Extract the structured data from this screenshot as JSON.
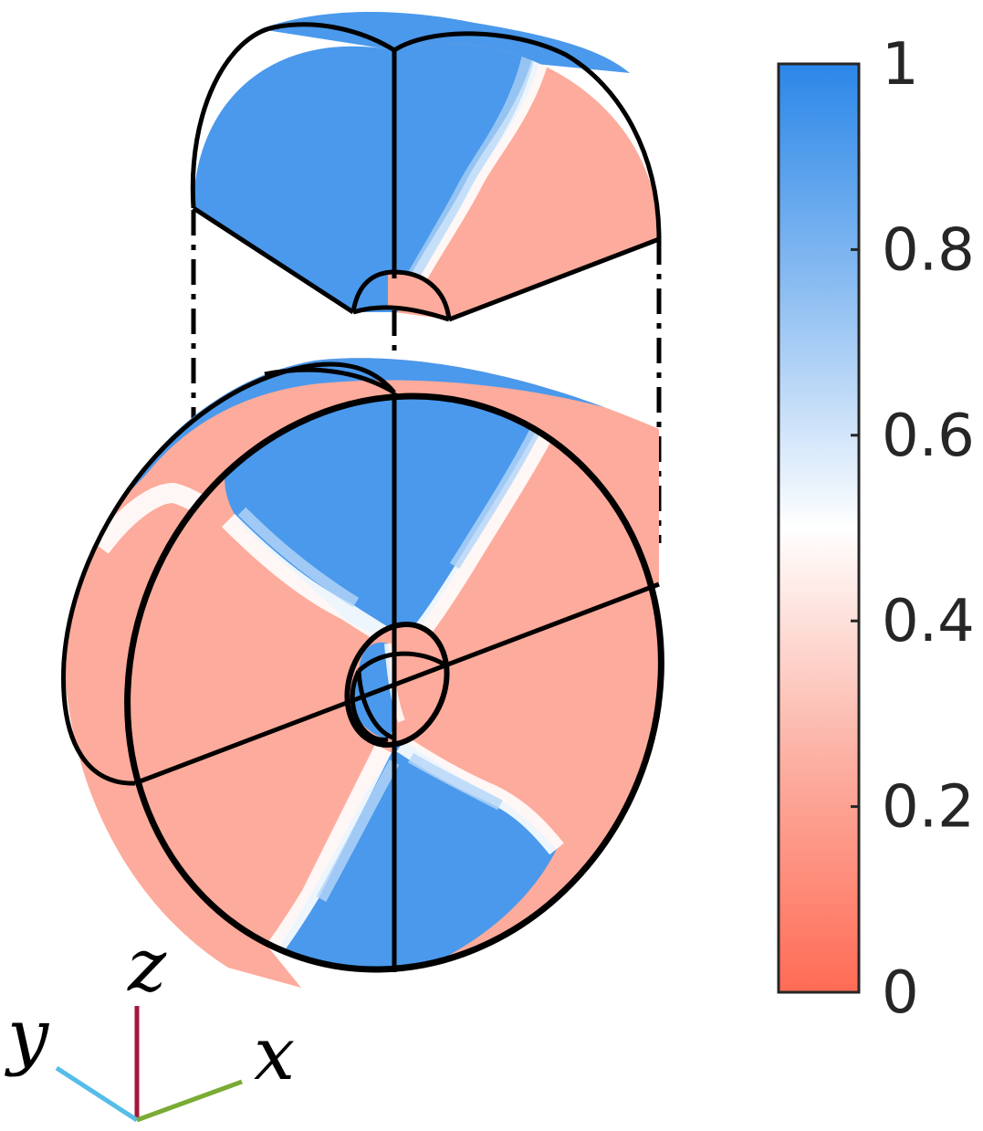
{
  "figure": {
    "colors": {
      "high": "#2b87e8",
      "mid": "#ffffff",
      "low": "#ff6b55",
      "face_blue": "#4a99ec",
      "face_red": "#fdab9c",
      "outline": "#000000",
      "axis_x": "#7aab35",
      "axis_y": "#56bde8",
      "axis_z": "#a3173a"
    },
    "axes": {
      "x": "x",
      "y": "y",
      "z": "z"
    }
  },
  "colorbar": {
    "range": [
      0,
      1
    ],
    "ticks": [
      {
        "value": 1,
        "label": "1"
      },
      {
        "value": 0.8,
        "label": "0.8"
      },
      {
        "value": 0.6,
        "label": "0.6"
      },
      {
        "value": 0.4,
        "label": "0.4"
      },
      {
        "value": 0.2,
        "label": "0.2"
      },
      {
        "value": 0,
        "label": "0"
      }
    ]
  }
}
